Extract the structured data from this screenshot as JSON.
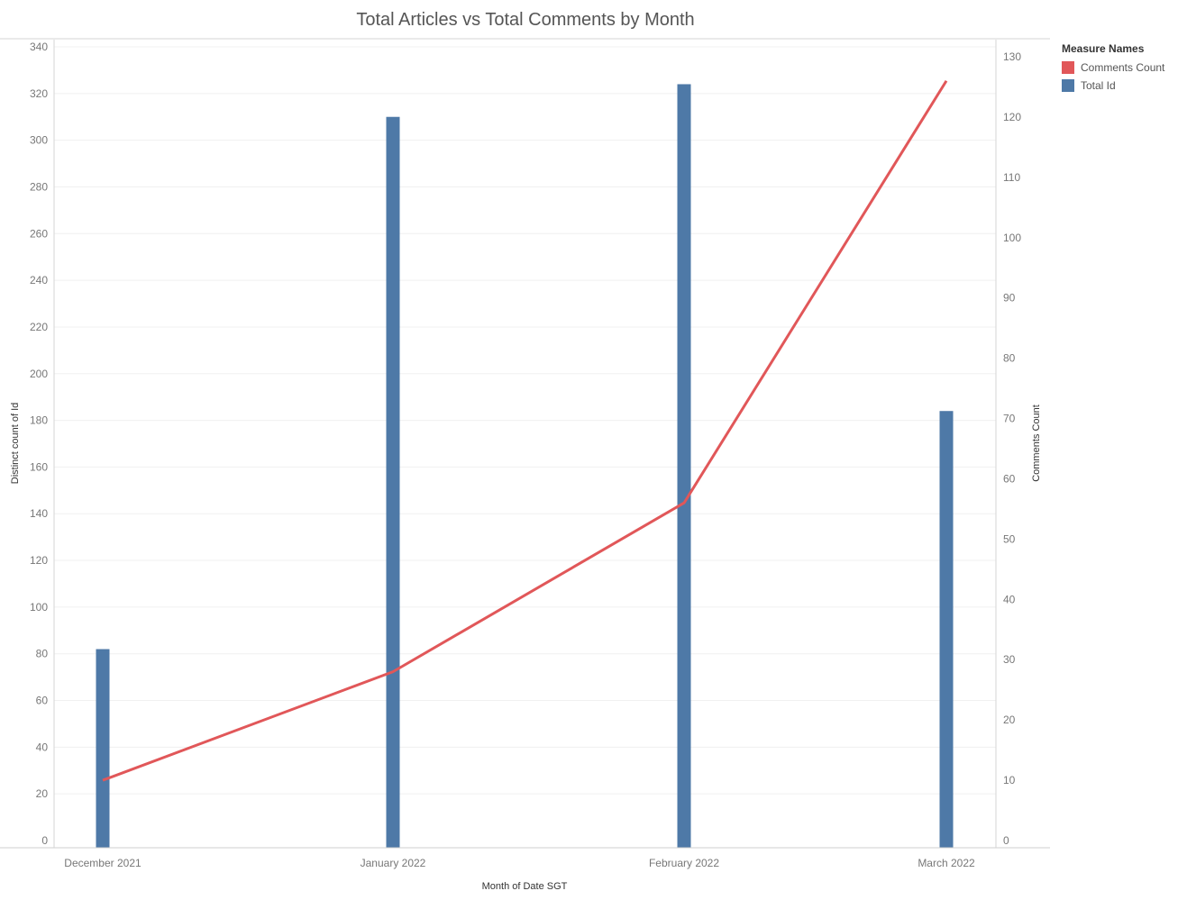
{
  "chart_data": {
    "type": "bar",
    "title": "Total Articles vs Total Comments by Month",
    "xlabel": "Month of Date SGT",
    "ylabel": "Distinct count of Id",
    "y2label": "Comments Count",
    "categories": [
      "December 2021",
      "January 2022",
      "February 2022",
      "March 2022"
    ],
    "ylim": [
      0,
      340
    ],
    "y2lim": [
      0,
      130
    ],
    "yticks": [
      0,
      20,
      40,
      60,
      80,
      100,
      120,
      140,
      160,
      180,
      200,
      220,
      240,
      260,
      280,
      300,
      320,
      340
    ],
    "y2ticks": [
      0,
      10,
      20,
      30,
      40,
      50,
      60,
      70,
      80,
      90,
      100,
      110,
      120,
      130
    ],
    "series": [
      {
        "name": "Total Id",
        "type": "bar",
        "axis": "left",
        "color": "#4e79a7",
        "values": [
          82,
          310,
          324,
          184
        ]
      },
      {
        "name": "Comments Count",
        "type": "line",
        "axis": "right",
        "color": "#e15759",
        "values": [
          10,
          28,
          56,
          126
        ]
      }
    ],
    "grid": true,
    "legend": {
      "title": "Measure Names",
      "placement": "right"
    }
  }
}
